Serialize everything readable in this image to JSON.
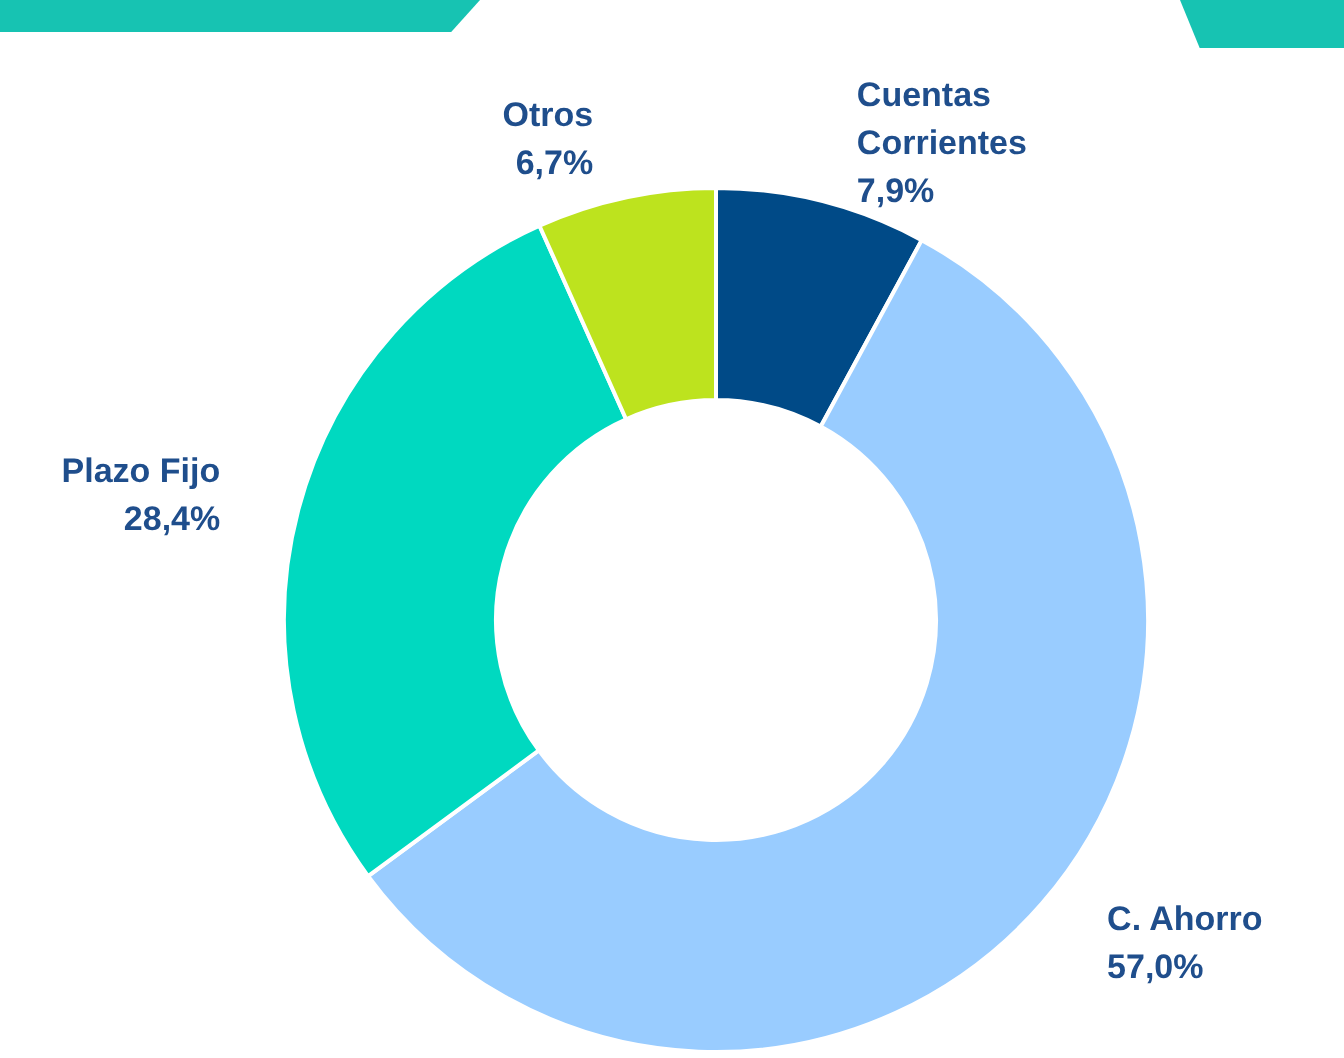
{
  "chart_data": {
    "type": "donut",
    "categories": [
      "Cuentas Corrientes",
      "C. Ahorro",
      "Plazo Fijo",
      "Otros"
    ],
    "values": [
      7.9,
      57.0,
      28.4,
      6.7
    ],
    "value_labels": [
      "7,9%",
      "57,0%",
      "28,4%",
      "6,7%"
    ],
    "colors": [
      "#004a87",
      "#99ccff",
      "#00d9c0",
      "#bde31e"
    ],
    "legend": false
  }
}
